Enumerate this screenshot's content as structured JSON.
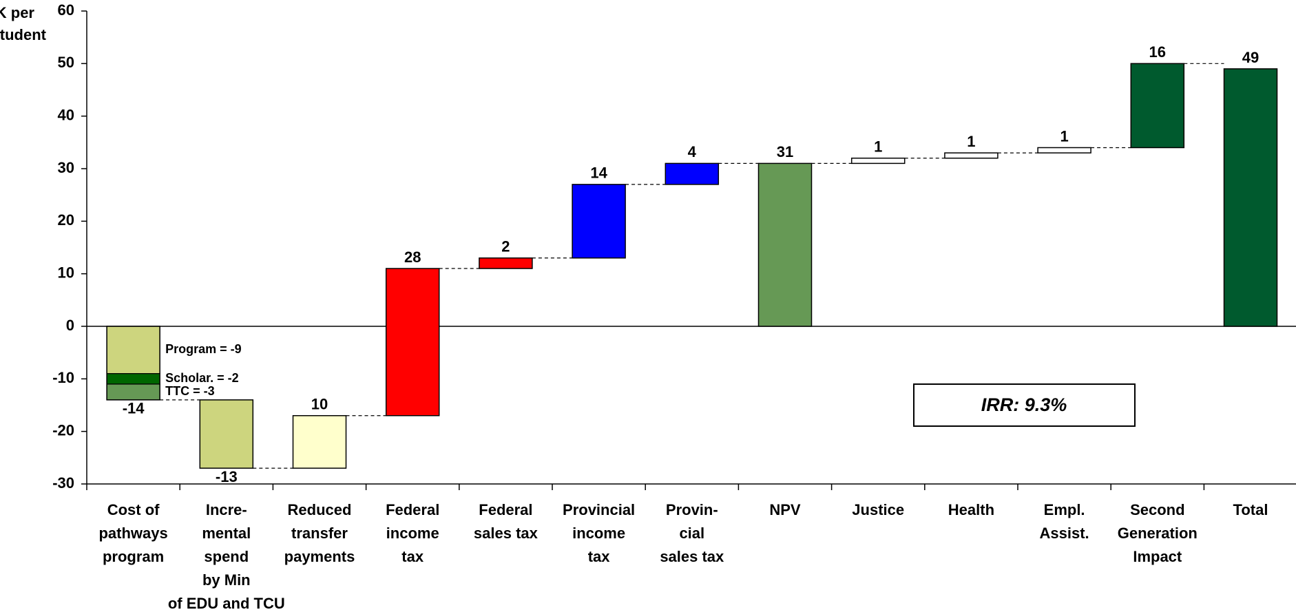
{
  "chart_data": {
    "type": "waterfall",
    "ylabel": [
      "$K per",
      "student"
    ],
    "categories": [
      [
        "Cost of",
        "pathways",
        "program"
      ],
      [
        "Incre-",
        "mental",
        "spend",
        "by Min",
        "of EDU and TCU"
      ],
      [
        "Reduced",
        "transfer",
        "payments"
      ],
      [
        "Federal",
        "income",
        "tax"
      ],
      [
        "Federal",
        "sales tax"
      ],
      [
        "Provincial",
        "income",
        "tax"
      ],
      [
        "Provin-",
        "cial",
        "sales tax"
      ],
      [
        "NPV"
      ],
      [
        "Justice"
      ],
      [
        "Health"
      ],
      [
        "Empl.",
        "Assist."
      ],
      [
        "Second",
        "Generation",
        "Impact"
      ],
      [
        "Total"
      ]
    ],
    "values": [
      -14,
      -13,
      10,
      28,
      2,
      14,
      4,
      31,
      1,
      1,
      1,
      16,
      49
    ],
    "totals": [
      false,
      false,
      false,
      false,
      false,
      false,
      false,
      true,
      false,
      false,
      false,
      false,
      true
    ],
    "colors": [
      "#cdd57e",
      "#cdd57e",
      "#ffffcc",
      "#ff0000",
      "#ff0000",
      "#0000ff",
      "#0000ff",
      "#669955",
      "#ffffff",
      "#ffffff",
      "#ffffff",
      "#005a2e",
      "#005a2e"
    ],
    "breakdown": [
      {
        "label": "Program = -9",
        "value": -9,
        "color": "#cdd57e"
      },
      {
        "label": "Scholar. = -2",
        "value": -2,
        "color": "#006600"
      },
      {
        "label": "TTC = -3",
        "value": -3,
        "color": "#669955"
      }
    ],
    "annotation": "IRR: 9.3%",
    "ylim": [
      -30,
      60
    ],
    "yticks": [
      -30,
      -20,
      -10,
      0,
      10,
      20,
      30,
      40,
      50,
      60
    ]
  }
}
